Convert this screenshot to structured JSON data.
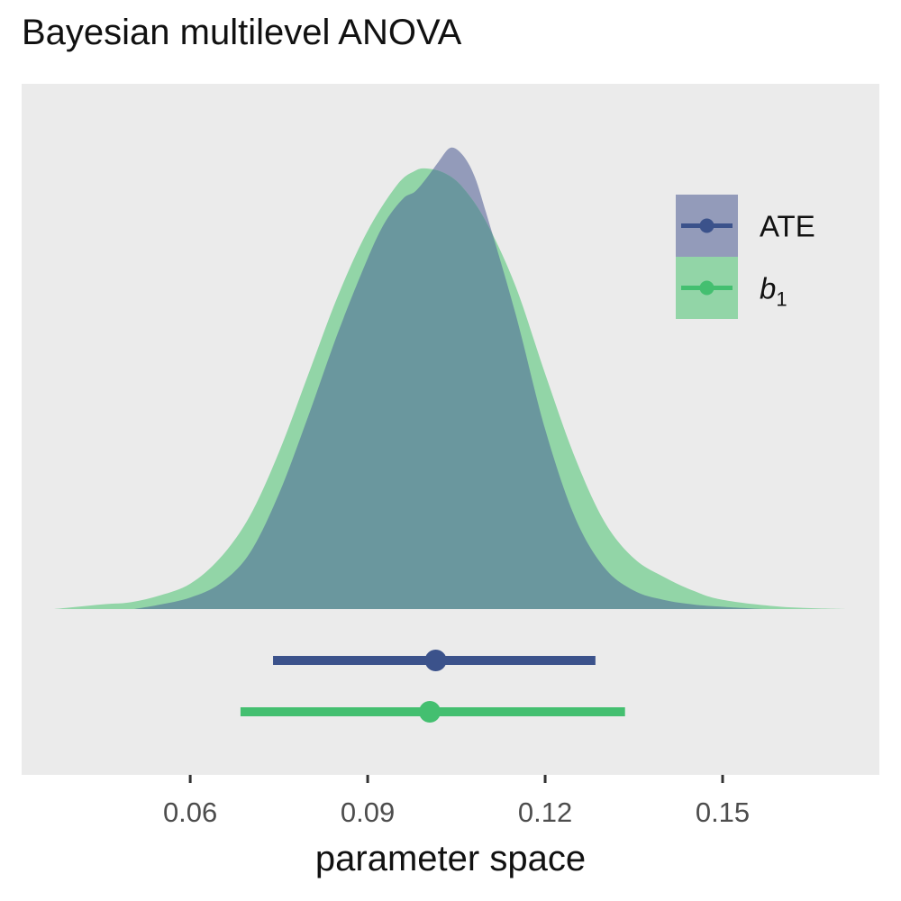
{
  "chart_data": {
    "type": "area",
    "title": "Bayesian multilevel ANOVA",
    "xlabel": "parameter space",
    "ylabel": "",
    "xlim": [
      0.0315,
      0.1765
    ],
    "x_ticks": [
      0.06,
      0.09,
      0.12,
      0.15
    ],
    "x_tick_labels": [
      "0.06",
      "0.09",
      "0.12",
      "0.15"
    ],
    "grid": false,
    "legend_position": "top-right",
    "series": [
      {
        "name": "ATE",
        "color": "#3b528b",
        "fill_color": "#939bba",
        "density": {
          "x": [
            0.0505,
            0.055,
            0.06,
            0.065,
            0.07,
            0.075,
            0.08,
            0.085,
            0.09,
            0.093,
            0.096,
            0.098,
            0.1,
            0.102,
            0.104,
            0.106,
            0.108,
            0.11,
            0.115,
            0.12,
            0.125,
            0.13,
            0.135,
            0.14,
            0.145,
            0.15,
            0.157
          ],
          "density": [
            0.0,
            0.01,
            0.025,
            0.055,
            0.12,
            0.25,
            0.42,
            0.6,
            0.76,
            0.84,
            0.89,
            0.905,
            0.935,
            0.97,
            1.0,
            0.985,
            0.94,
            0.86,
            0.64,
            0.39,
            0.2,
            0.09,
            0.04,
            0.02,
            0.01,
            0.005,
            0.0
          ]
        },
        "point": 0.1015,
        "interval": [
          0.074,
          0.1285
        ]
      },
      {
        "name": "b1",
        "label": "b",
        "label_subscript": "1",
        "color": "#44bf70",
        "fill_color": "#92d5a7",
        "density": {
          "x": [
            0.037,
            0.045,
            0.05,
            0.055,
            0.06,
            0.065,
            0.07,
            0.075,
            0.08,
            0.085,
            0.09,
            0.095,
            0.098,
            0.1,
            0.103,
            0.106,
            0.11,
            0.115,
            0.12,
            0.125,
            0.13,
            0.135,
            0.14,
            0.145,
            0.15,
            0.16,
            0.171
          ],
          "density": [
            0.0,
            0.01,
            0.015,
            0.03,
            0.055,
            0.11,
            0.2,
            0.34,
            0.51,
            0.68,
            0.82,
            0.92,
            0.95,
            0.955,
            0.945,
            0.915,
            0.84,
            0.7,
            0.51,
            0.33,
            0.19,
            0.11,
            0.07,
            0.04,
            0.02,
            0.005,
            0.0
          ]
        },
        "point": 0.1005,
        "interval": [
          0.0685,
          0.1335
        ]
      }
    ],
    "overlap_color": "#6a979e"
  }
}
